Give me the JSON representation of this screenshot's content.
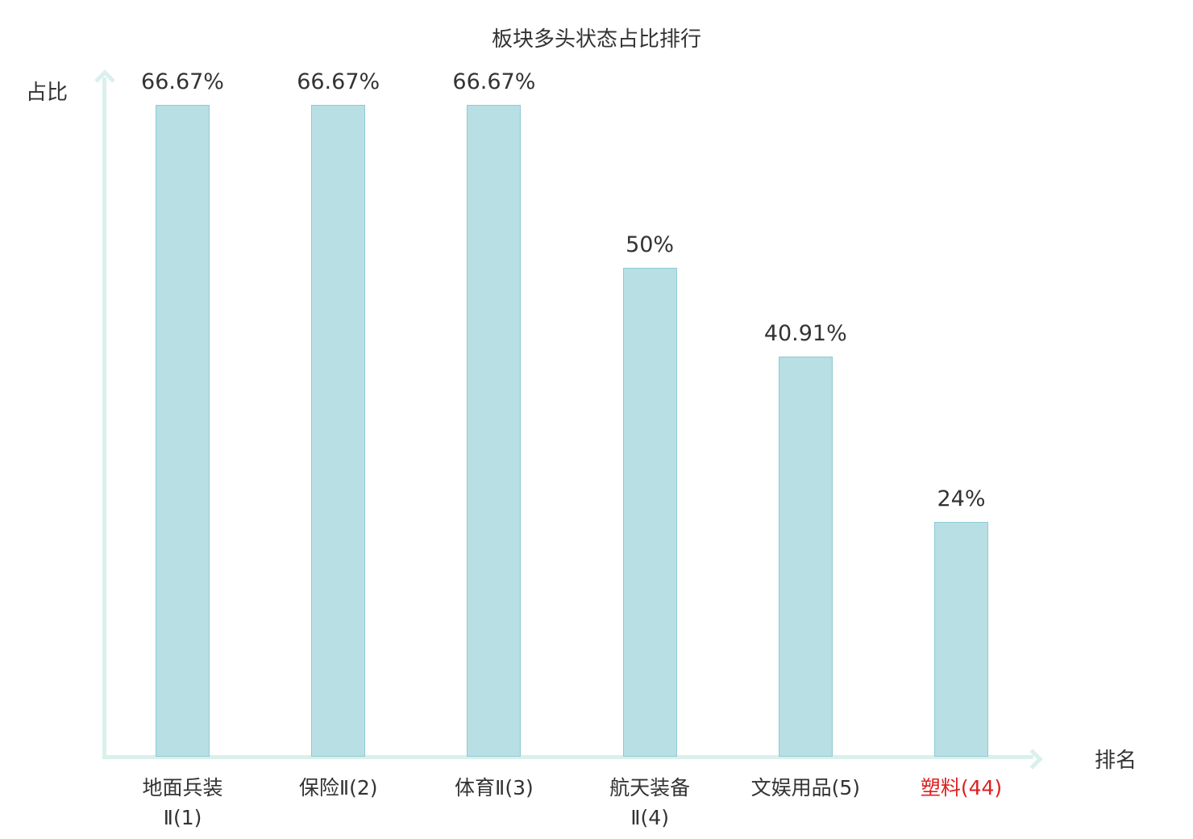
{
  "title": "板块多头状态占比排行",
  "colors": {
    "bar_fill": "#b8dfe4",
    "bar_border": "#8fcad2",
    "axis": "#daf0ec",
    "text": "#333333",
    "highlight": "#e02020"
  },
  "chart_data": {
    "type": "bar",
    "title": "板块多头状态占比排行",
    "xlabel": "排名",
    "ylabel": "占比",
    "ylim": [
      0,
      70
    ],
    "grid": false,
    "legend": false,
    "categories": [
      "地面兵装\nⅡ(1)",
      "保险Ⅱ(2)",
      "体育Ⅱ(3)",
      "航天装备\nⅡ(4)",
      "文娱用品(5)",
      "塑料(44)"
    ],
    "values": [
      66.67,
      66.67,
      66.67,
      50,
      40.91,
      24
    ],
    "value_labels": [
      "66.67%",
      "66.67%",
      "66.67%",
      "50%",
      "40.91%",
      "24%"
    ],
    "highlighted_category_index": 5
  }
}
